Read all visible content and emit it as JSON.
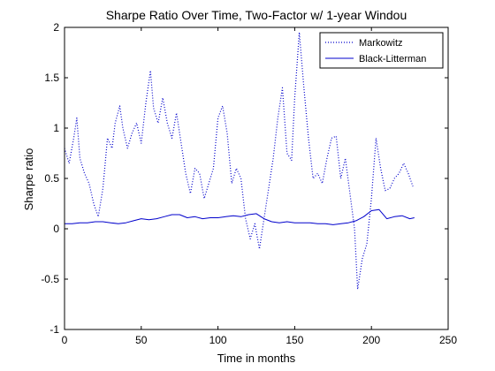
{
  "chart_data": {
    "type": "line",
    "title": "Sharpe Ratio Over Time, Two-Factor w/ 1-year Windou",
    "xlabel": "Time in months",
    "ylabel": "Sharpe ratio",
    "xlim": [
      0,
      250
    ],
    "ylim": [
      -1,
      2
    ],
    "xticks": [
      0,
      50,
      100,
      150,
      200,
      250
    ],
    "yticks": [
      -1,
      -0.5,
      0,
      0.5,
      1,
      1.5,
      2
    ],
    "xtick_labels": [
      "0",
      "50",
      "100",
      "150",
      "200",
      "250"
    ],
    "ytick_labels": [
      "-1",
      "-0.5",
      "0",
      "0.5",
      "1",
      "1.5",
      "2"
    ],
    "grid": false,
    "legend_position": "top-right",
    "colors": {
      "series": "#0000cc",
      "axes": "#000000",
      "background": "#ffffff"
    },
    "series": [
      {
        "name": "Markowitz",
        "style": "dotted",
        "x": [
          0,
          3,
          6,
          8,
          10,
          13,
          16,
          19,
          22,
          25,
          28,
          31,
          33,
          36,
          38,
          41,
          44,
          47,
          50,
          53,
          56,
          58,
          61,
          64,
          67,
          70,
          73,
          76,
          79,
          82,
          85,
          88,
          91,
          94,
          97,
          100,
          103,
          106,
          109,
          112,
          115,
          118,
          121,
          124,
          127,
          130,
          133,
          136,
          139,
          142,
          145,
          148,
          150,
          153,
          156,
          159,
          162,
          165,
          168,
          171,
          174,
          177,
          180,
          183,
          186,
          189,
          191,
          194,
          197,
          200,
          203,
          206,
          209,
          212,
          215,
          218,
          221,
          224,
          227
        ],
        "y": [
          0.8,
          0.65,
          0.9,
          1.1,
          0.7,
          0.55,
          0.45,
          0.25,
          0.12,
          0.4,
          0.9,
          0.8,
          1.05,
          1.22,
          1.0,
          0.8,
          0.95,
          1.05,
          0.85,
          1.25,
          1.57,
          1.2,
          1.05,
          1.3,
          1.05,
          0.9,
          1.15,
          0.85,
          0.55,
          0.35,
          0.6,
          0.55,
          0.3,
          0.45,
          0.6,
          1.1,
          1.22,
          0.95,
          0.45,
          0.6,
          0.5,
          0.1,
          -0.1,
          0.05,
          -0.2,
          0.1,
          0.4,
          0.7,
          1.1,
          1.4,
          0.75,
          0.68,
          1.3,
          1.95,
          1.4,
          0.9,
          0.5,
          0.55,
          0.45,
          0.7,
          0.9,
          0.92,
          0.5,
          0.7,
          0.35,
          0.0,
          -0.6,
          -0.3,
          -0.15,
          0.3,
          0.9,
          0.6,
          0.38,
          0.4,
          0.5,
          0.55,
          0.65,
          0.55,
          0.42
        ]
      },
      {
        "name": "Black-Litterman",
        "style": "solid",
        "x": [
          0,
          5,
          10,
          15,
          20,
          25,
          30,
          35,
          40,
          45,
          50,
          55,
          60,
          65,
          70,
          75,
          80,
          85,
          90,
          95,
          100,
          105,
          110,
          115,
          120,
          125,
          130,
          135,
          140,
          145,
          150,
          155,
          160,
          165,
          170,
          175,
          180,
          185,
          190,
          195,
          200,
          205,
          210,
          215,
          220,
          225,
          228
        ],
        "y": [
          0.05,
          0.05,
          0.06,
          0.06,
          0.07,
          0.07,
          0.06,
          0.05,
          0.06,
          0.08,
          0.1,
          0.09,
          0.1,
          0.12,
          0.14,
          0.14,
          0.11,
          0.12,
          0.1,
          0.11,
          0.11,
          0.12,
          0.13,
          0.12,
          0.14,
          0.15,
          0.1,
          0.07,
          0.06,
          0.07,
          0.06,
          0.06,
          0.06,
          0.05,
          0.05,
          0.04,
          0.05,
          0.06,
          0.08,
          0.12,
          0.18,
          0.19,
          0.1,
          0.12,
          0.13,
          0.1,
          0.11
        ]
      }
    ]
  }
}
